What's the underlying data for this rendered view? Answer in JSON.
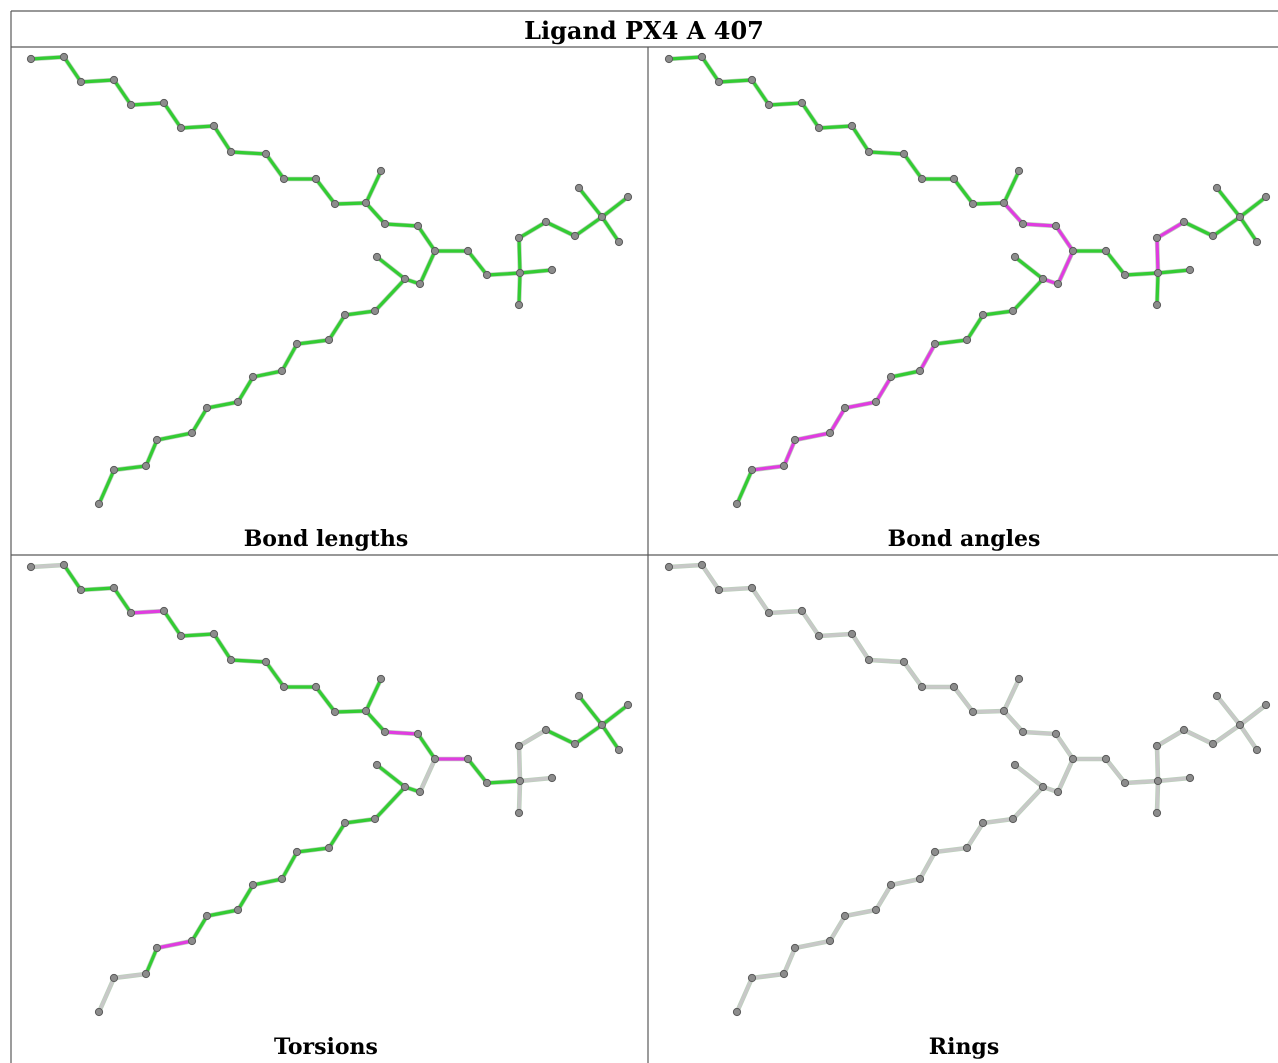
{
  "title": "Ligand PX4 A 407",
  "colors": {
    "ok": "#33cc33",
    "outlier": "#e03ce0",
    "neutral": "#c8c8c8",
    "atom": "#8c8c8c",
    "border": "#5a5a5a"
  },
  "panels": [
    {
      "caption": "Bond lengths",
      "default_color": "ok",
      "outlier_bonds": [],
      "neutral_bonds": []
    },
    {
      "caption": "Bond angles",
      "default_color": "ok",
      "outlier_bonds": [
        14,
        15,
        16,
        17,
        18,
        24,
        26,
        27,
        28,
        29,
        30,
        31,
        38,
        39
      ],
      "neutral_bonds": []
    },
    {
      "caption": "Torsions",
      "default_color": "ok",
      "outlier_bonds": [
        4,
        15,
        29,
        33,
        49
      ],
      "neutral_bonds": [
        0,
        17,
        31,
        32,
        36,
        37,
        38,
        39,
        54
      ]
    },
    {
      "caption": "Rings",
      "default_color": "neutral",
      "outlier_bonds": [],
      "neutral_bonds": []
    }
  ]
}
